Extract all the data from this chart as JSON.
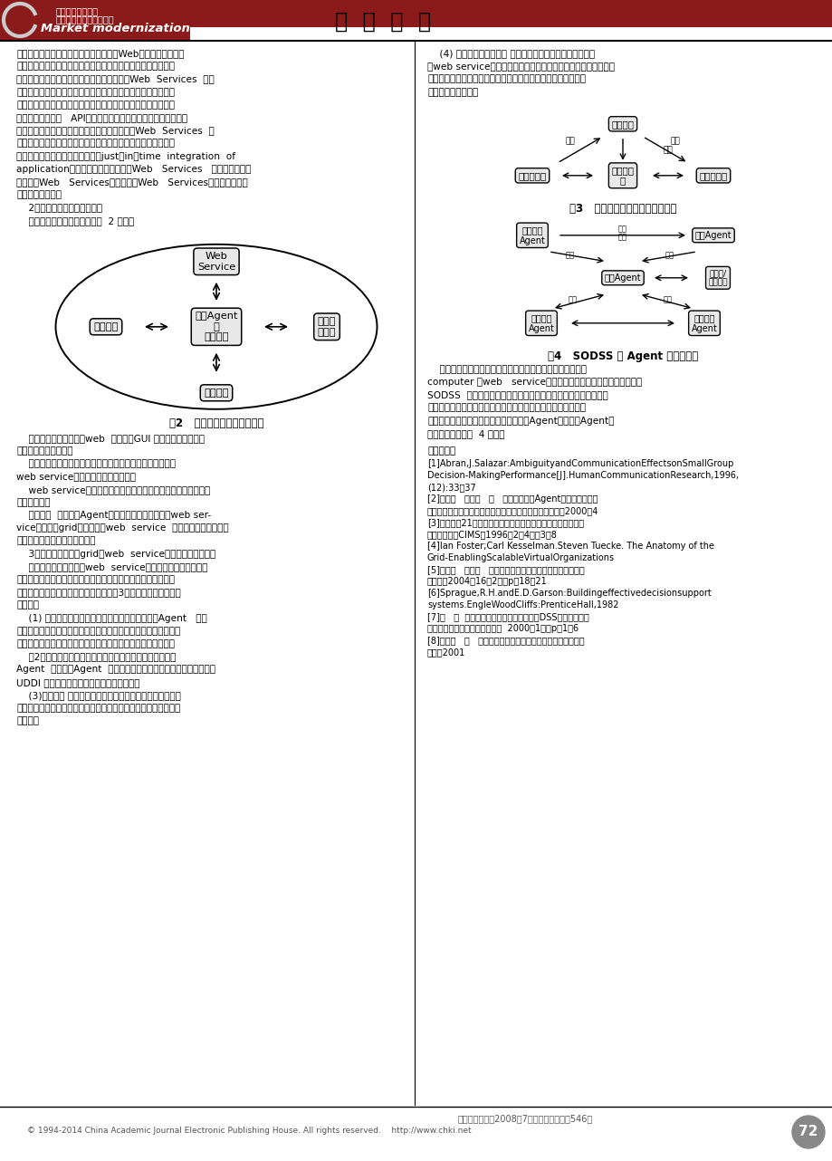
{
  "title_cn": "经  营  管  理",
  "journal_name1": "全国中文核心期刊",
  "journal_name2": "全国贸易经济类核心期刊",
  "journal_en": "Market modernization",
  "bg_color": "#ffffff",
  "text_color": "#000000",
  "page_number": "72",
  "copyright": "© 1994-2014 China Academic Journal Electronic Publishing House. All rights reserved.    http://www.chki.net",
  "journal_info": "《商场现代化》2008年7月（下旬刊）总第546期",
  "left_col_text": [
    "耦合关系基础上的，大部分系统包括面向Web的系统，都是高度",
    "耦合应用或子系统。这种应用对系统的变化十分敏感，任何一个",
    "子系统输出的变化都常常导致整个系统崩溃。Web  Services  系统",
    "弱化了系统的耦合性并提高了系统的动态绑定能力，系统中所有",
    "的组件都是服务，这些组件封装其操作并向网络上的其他协作组",
    "件公布其消息调用   API。构造一个应用只需要通过服务查找机制",
    "找到需要的服务并将这些服务重新组合。因此，Web  Services  提",
    "供了一种新的面向服务的构造方法，构造应用只是发现并重组可",
    "用的网络服务，即应用实时集成（just－in－time  integration  of",
    "application）。因此，不仅可以通过Web   Services   获得服务，而且",
    "可以通过Web   Services获得由更多Web   Services协调运作所提供",
    "的更高级的服务。",
    "    2．面向服务架构的概念模型",
    "    面向服务架构的概念模型如图  2 所示："
  ],
  "left_col_text2": [
    "    其中：用户接口主要以web  方式提供GUI 与用户进行交互，支",
    "持用户输入决策任务。",
    "    网络资源管理为整个系统提供可用资源，这些资源主要是与",
    "web service相对应的硬件计算资源。",
    "    web service部署在网络中，将被系统根据具体问题进行发现、",
    "组合、调用。",
    "    中央控制  主要是以Agent为主的智能管理，支持对web ser-",
    "vice的管理、grid资源管理、web  service  与资源的对应、执行，",
    "以及决策系统构建的流程控制。",
    "    3．基于代理机制的grid与web  service结合的系统结构模型",
    "    基于代理技术的网格与web  service的融合模型提供了对网格",
    "服务的搜索、网络资源的选择、网格服务在网络资源上的部署、",
    "集成、执行管理几个阶段的支持，对如图3所示：系统主要包括以",
    "下功能：",
    "    (1) 决策问题分解：通过用户接口接受决策问题，Agent   负责",
    "将决策问题分解为一系列单独的子任务序列表，方便子任务与网络",
    "服务在语义上的对应和匹配，为服务定位和资源定位建立条件。",
    "    （2）网络服务的发现和搜索：主要通过系统中的服务搜索",
    "Agent  来实现，Agent  根据子任务的要求，依靠服务描述信息查询",
    "UDDI 来寻找和锁定、调用合适的网络服务。",
    "    (3)资源发现 资源是可以在一段时间内使用的可更新或不可",
    "更新的东西。它们的所有者可能向其他使用资源的人收费、共享，",
    "或独占。"
  ],
  "right_col_text": [
    "    (4) 资源调度和服务部署 为了完成用户提交的决策任务和满",
    "足web service的应用要求，把网格中所有可用资源（计算资源、",
    "存储资源和网络资源）进行匹配，找到最好最合理的资源分配方",
    "式和资源调度策略。"
  ],
  "right_col_text2": [
    "    网格云算在缺乏标准和整合技术时，只能整合同平台架构的",
    "computer 而web   service的特性是处理异构平台的整合，因此在",
    "SODSS  中，通过具有整合异地资源的网格运算与具有整合异质性",
    "系统的网络服务互相结合，使决策系统的实时性和动态性得到了",
    "提高。其中的智能化管理工作将主要依靠Agent来完成，Agent之",
    "间的协作关系如图  4 所示："
  ],
  "references_title": "参考文献：",
  "references": [
    "[1]Abran,J.Salazar:AmbiguityandCommunicationEffectsonSmallGroup",
    "Decision-MakingPerformance[J].HumanCommunicationResearch,1996,",
    "(12):33～37",
    "[2]黄必清   刘文煌   吴   兵：基于智能Agent的群体决策支持",
    "系统及其在经营管理过程中的应用．系统工程理论与实践，2000，4",
    "[3]蒋新松：21世纪企业的主要模式一敏捷制造企业．计算机集",
    "成制造系统一CIMS，1996，2（4）：3～8",
    "[4]Ian Foster;Carl Kesselman.Steven Tuecke. The Anatomy of the",
    "Grid-EnablingScalableVirtualOrganizations",
    "[5]李向阳   王颜新   项同德：虚拟企业组件模型化的框架．管",
    "理科学，2004，16（2）：p．18～21",
    "[6]Sprague,R.H.andE.D.Garson:Buildingeffectivedecisionsupport",
    "systems.EngleWoodCliffs:PrenticeHall,1982",
    "[7]杜   江  孙玉芳：基于面向对象模型库的DSS可重用体系结",
    "构研究．系统工程理论与实践，  2000（1）：p．1～6",
    "[8]余瑞钧   陈   奇：智能决策支持系统实现技术．浙江大学出",
    "版社，2001"
  ],
  "fig2_caption": "图2   面向服务架构的概念模型",
  "fig3_caption": "图3   基于代理技术的服务应用模型",
  "fig4_caption": "图4   SODSS 中 Agent 之间关系图"
}
